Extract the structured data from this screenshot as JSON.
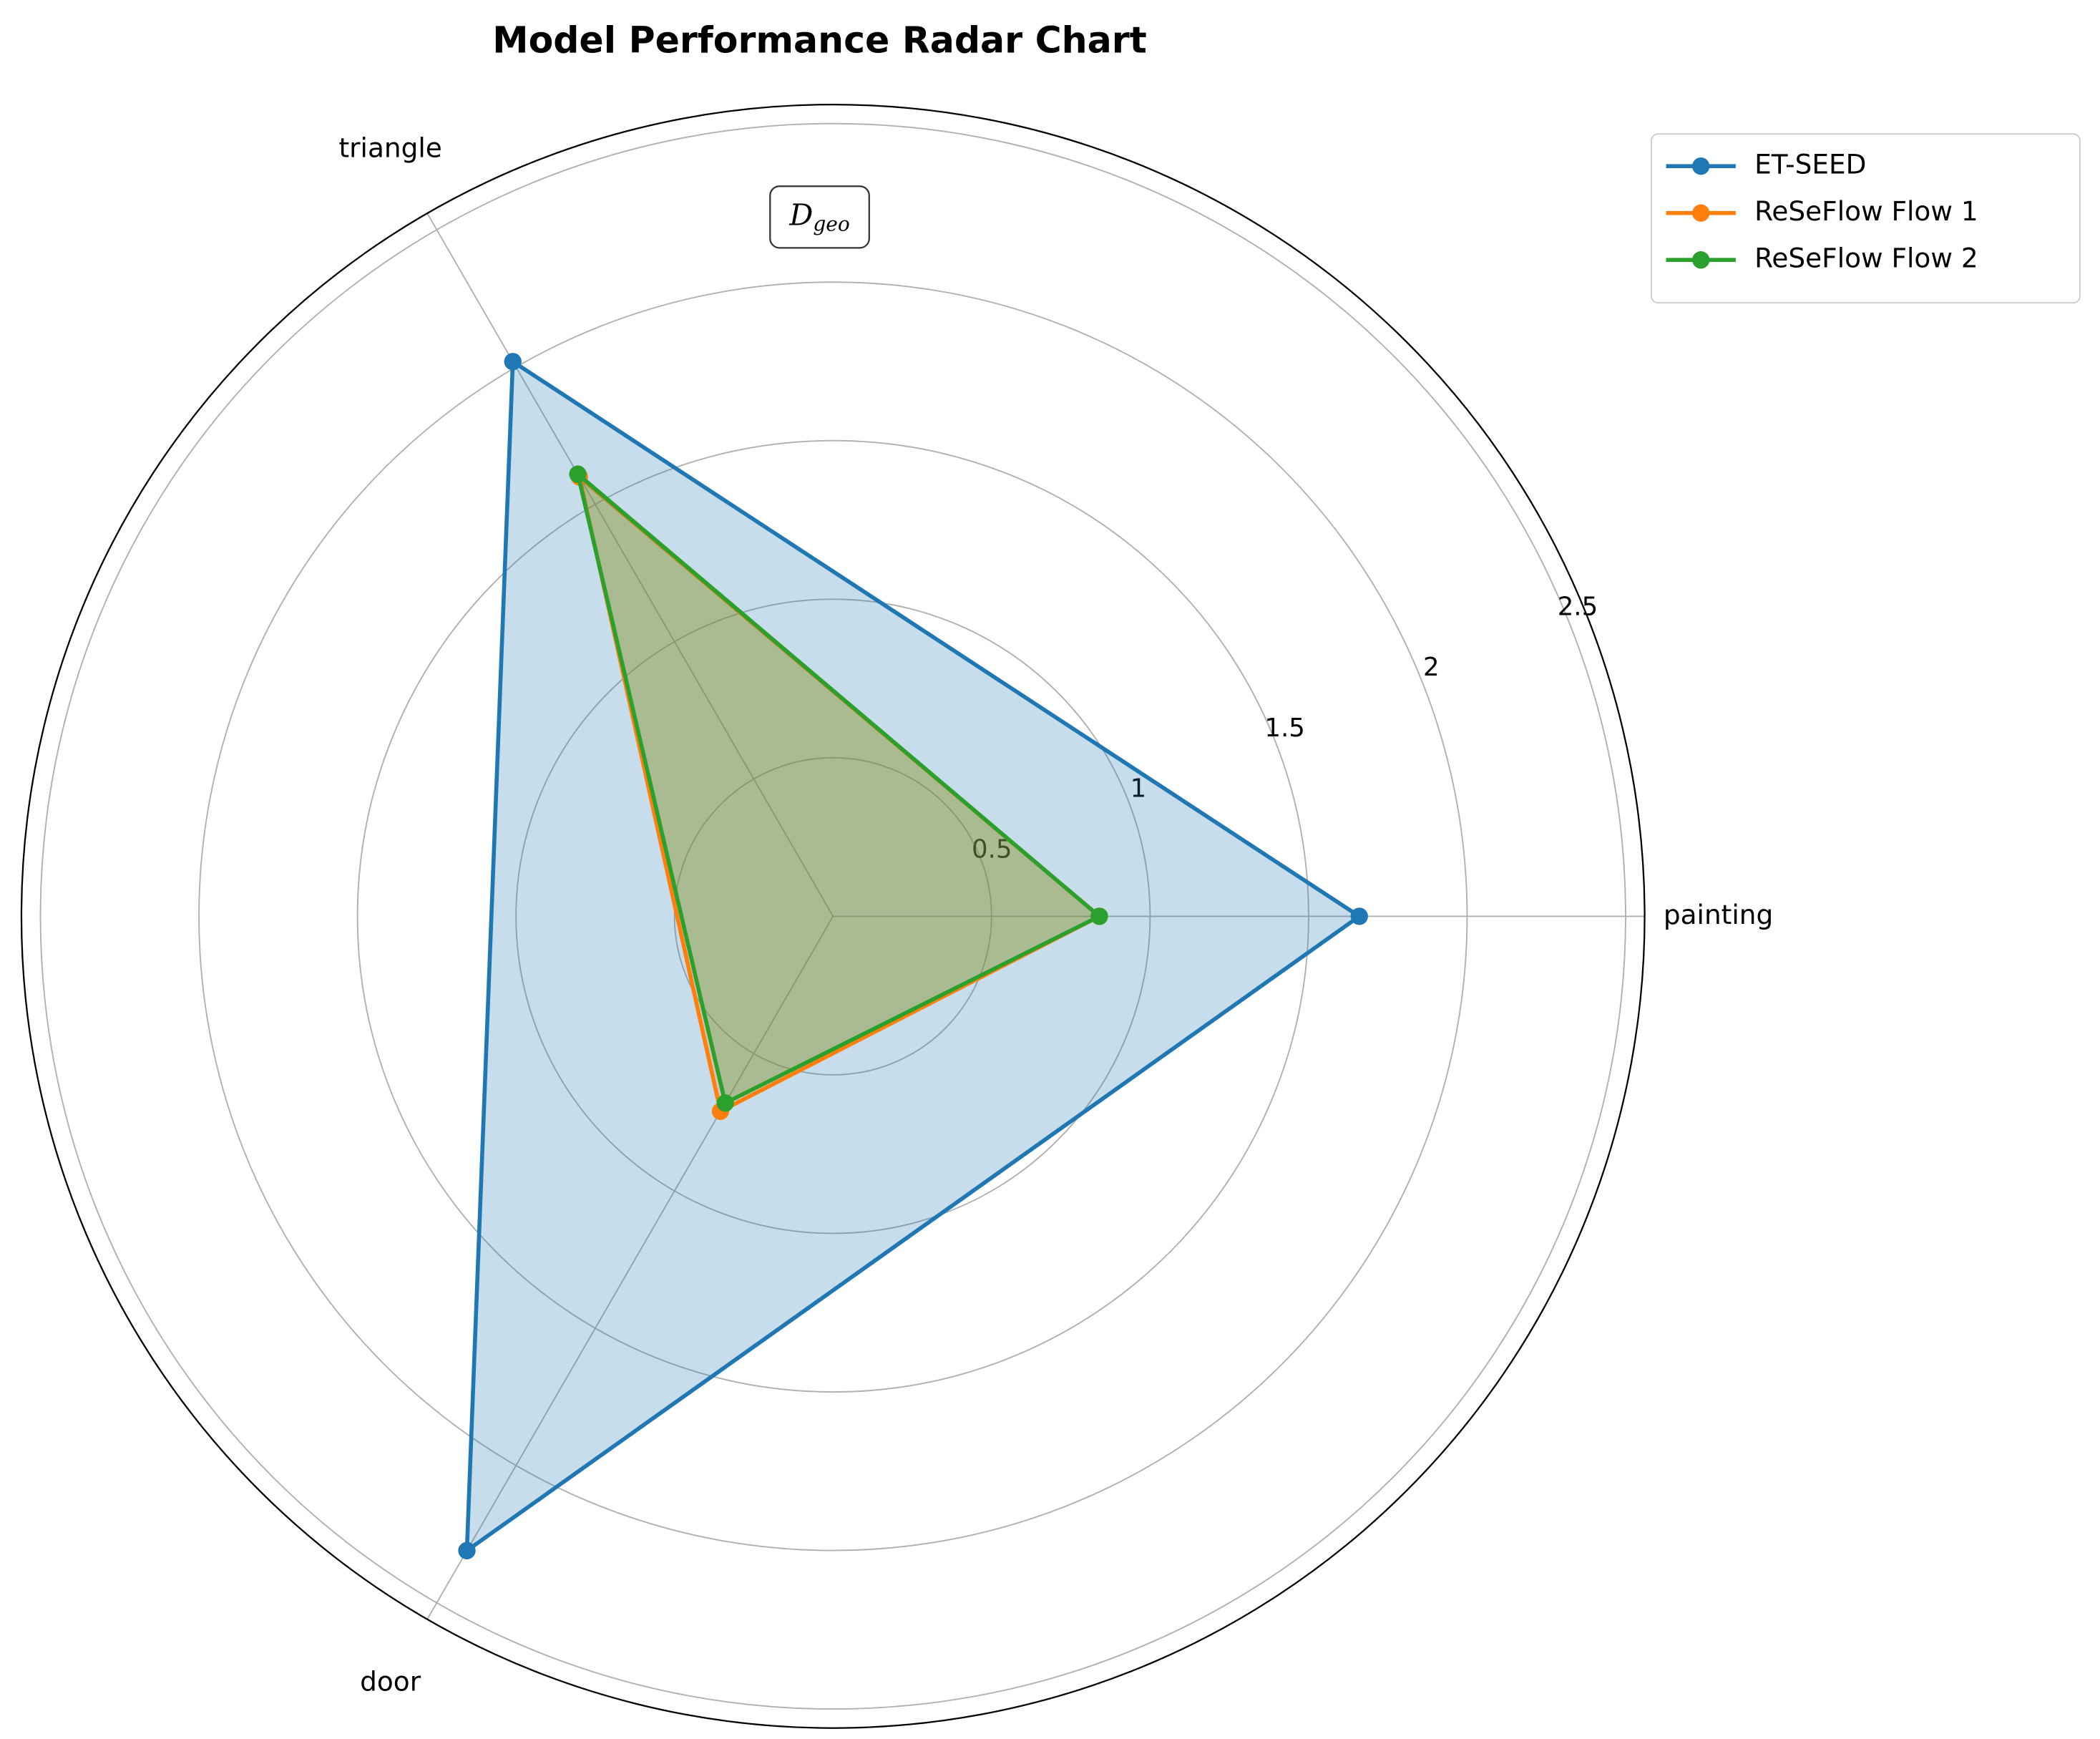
{
  "chart_data": {
    "type": "radar",
    "title": "Model Performance Radar Chart",
    "categories": [
      "painting",
      "triangle",
      "door"
    ],
    "series": [
      {
        "name": "ET-SEED",
        "color": "#1f77b4",
        "values": [
          1.66,
          2.02,
          2.31
        ]
      },
      {
        "name": "ReSeFlow Flow 1",
        "color": "#ff7f0e",
        "values": [
          0.84,
          1.6,
          0.71
        ]
      },
      {
        "name": "ReSeFlow Flow 2",
        "color": "#2ca02c",
        "values": [
          0.84,
          1.61,
          0.68
        ]
      }
    ],
    "ylim": [
      0,
      2.56
    ],
    "yticks": [
      0.5,
      1.0,
      1.5,
      2.0,
      2.5
    ],
    "annotation": {
      "text": "D",
      "subscript": "geo"
    },
    "grid": true,
    "legend": "upper right outside"
  }
}
